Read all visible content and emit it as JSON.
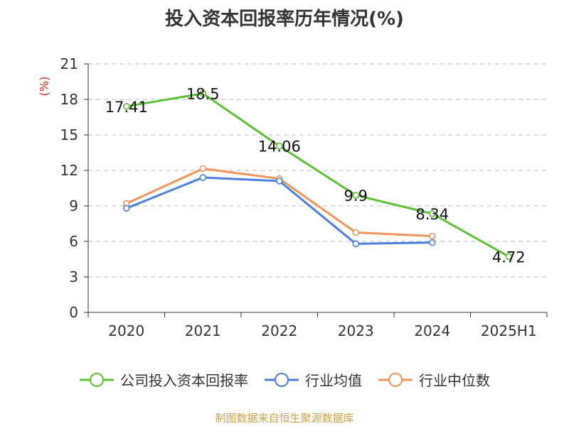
{
  "chart_data": {
    "type": "line",
    "title": "投入资本回报率历年情况(%)",
    "ylabel": "(%)",
    "categories": [
      "2020",
      "2021",
      "2022",
      "2023",
      "2024",
      "2025H1"
    ],
    "ylim": [
      0,
      21
    ],
    "yticks": [
      0,
      3,
      6,
      9,
      12,
      15,
      18,
      21
    ],
    "grid": true,
    "legend": "bottom",
    "series": [
      {
        "name": "公司投入资本回报率",
        "color": "#5cc135",
        "values": [
          17.41,
          18.5,
          14.06,
          9.9,
          8.34,
          4.72
        ],
        "labels": [
          "17.41",
          "18.5",
          "14.06",
          "9.9",
          "8.34",
          "4.72"
        ]
      },
      {
        "name": "行业均值",
        "color": "#4a7fdd",
        "values": [
          8.8,
          11.4,
          11.1,
          5.8,
          5.9,
          null
        ]
      },
      {
        "name": "行业中位数",
        "color": "#f4935a",
        "values": [
          9.2,
          12.15,
          11.3,
          6.75,
          6.45,
          null
        ]
      }
    ]
  },
  "source": "制图数据来自恒生聚源数据库"
}
